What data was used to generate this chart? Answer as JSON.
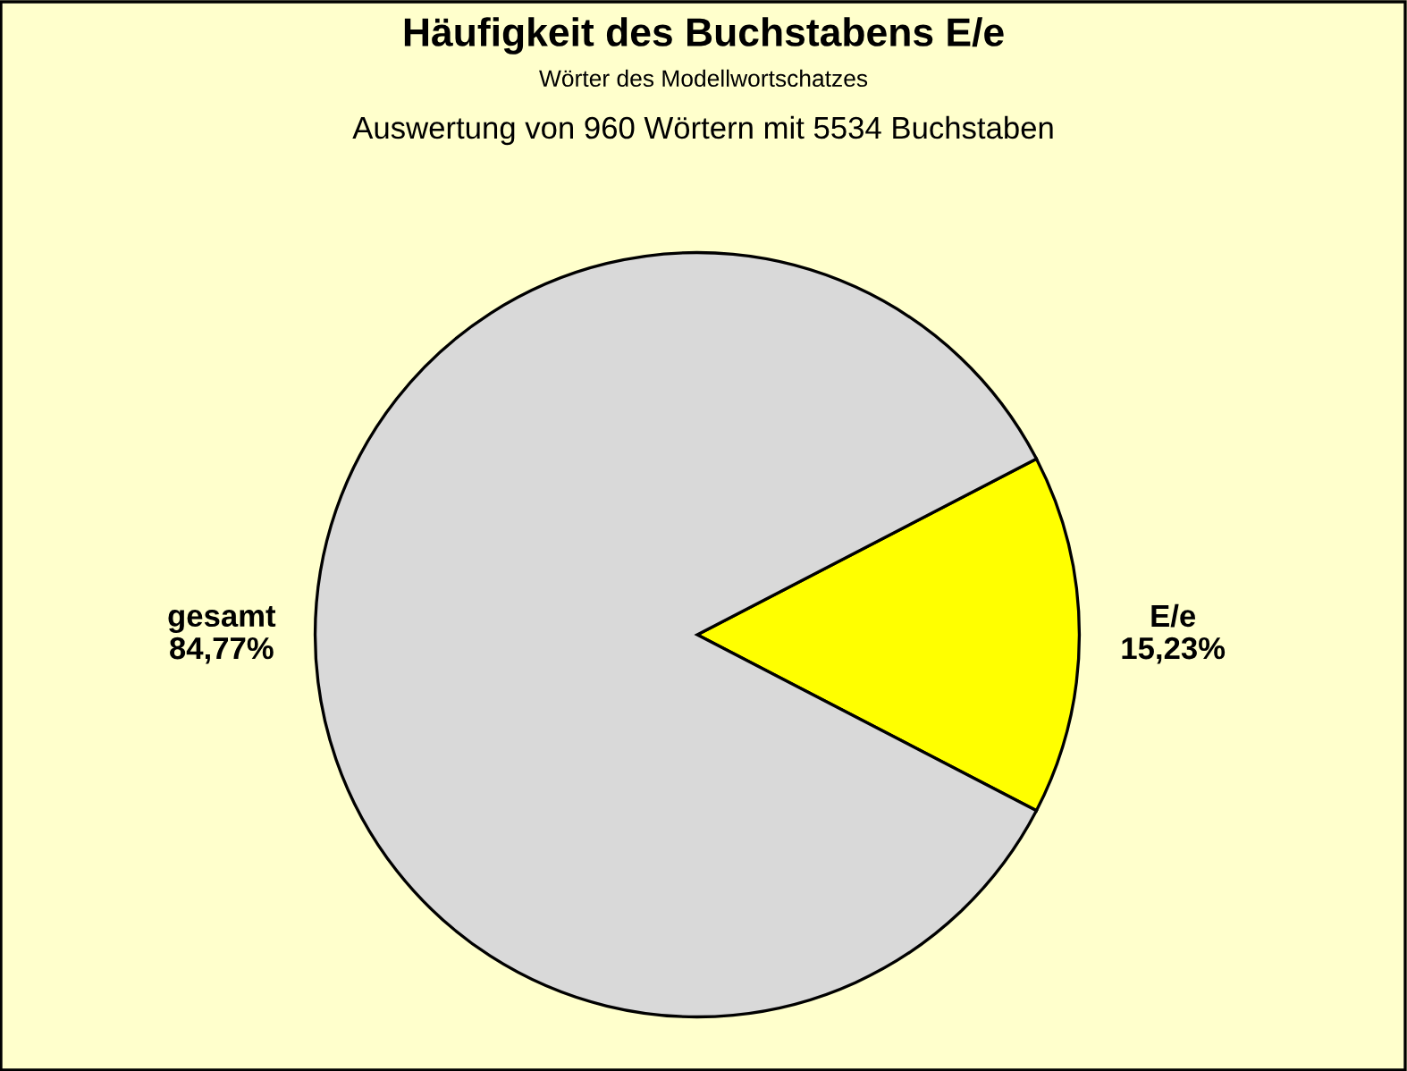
{
  "chart_data": {
    "type": "pie",
    "title": "Häufigkeit des Buchstabens E/e",
    "subtitle": "Wörter des Modellwortschatzes",
    "annotations": [
      "Auswertung von 960 Wörtern mit 5534 Buchstaben"
    ],
    "categories": [
      "E/e",
      "gesamt"
    ],
    "values": [
      15.23,
      84.77
    ],
    "colors": [
      "#ffff00",
      "#d9d9d9"
    ],
    "value_labels": [
      "15,23%",
      "84,77%"
    ]
  }
}
